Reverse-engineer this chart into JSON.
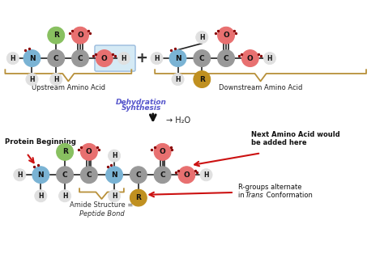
{
  "bg_color": "#ffffff",
  "colors": {
    "N": "#7ab3d4",
    "C_gray": "#999999",
    "O_red": "#e87070",
    "H": "#e0e0e0",
    "R_green": "#88c060",
    "R_gold": "#c09020",
    "box_fill": "#d5eaf5",
    "box_edge": "#99bbdd",
    "brace_color": "#b8903a",
    "dot_color": "#880000",
    "text_blue": "#5555cc",
    "arrow_red": "#cc1111",
    "bond_color": "#222222"
  },
  "labels": {
    "upstream": "Upstream Amino Acid",
    "downstream": "Downstream Amino Acid",
    "dehydration_line1": "Dehydration",
    "dehydration_line2": "Synthesis",
    "h2o": "→ H₂O",
    "protein_beginning": "Protein Beginning",
    "next_aa_line1": "Next Amino Acid would",
    "next_aa_line2": "be added here",
    "amide_line1": "Amide Structure =",
    "amide_line2": "Peptide Bond",
    "r_groups_line1": "R-groups alternate",
    "r_groups_line2": "in ",
    "r_groups_trans": "Trans",
    "r_groups_line2b": " Conformation"
  }
}
